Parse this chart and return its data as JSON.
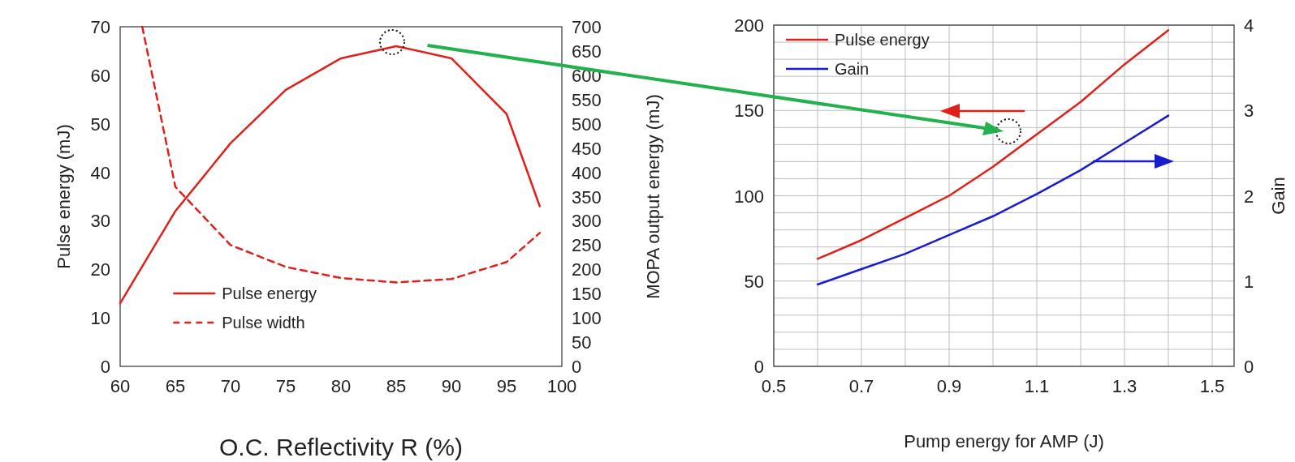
{
  "chart_data": [
    {
      "type": "line",
      "xlabel": "O.C. Reflectivity R (%)",
      "ylabel": "Pulse energy (mJ)",
      "y2label": "MOPA output energy (mJ)",
      "xlim": [
        60,
        100
      ],
      "xticks": [
        60,
        65,
        70,
        75,
        80,
        85,
        90,
        95,
        100
      ],
      "ylim": [
        0,
        70
      ],
      "yticks": [
        0,
        10,
        20,
        30,
        40,
        50,
        60,
        70
      ],
      "y2lim": [
        0,
        700
      ],
      "y2ticks": [
        0,
        50,
        100,
        150,
        200,
        250,
        300,
        350,
        400,
        450,
        500,
        550,
        600,
        650,
        700
      ],
      "grid": false,
      "legend": "bottom",
      "series": [
        {
          "name": "Pulse energy",
          "color": "#e0201b",
          "x": [
            60,
            65,
            70,
            75,
            80,
            85,
            90,
            95,
            98
          ],
          "values": [
            13,
            32,
            46,
            57,
            63.5,
            66,
            63.5,
            52,
            33
          ],
          "line_style": "solid"
        },
        {
          "name": "Pulse width",
          "color": "#e0201b",
          "axis": "y2",
          "x": [
            62,
            65,
            70,
            75,
            80,
            85,
            90,
            95,
            98
          ],
          "values": [
            700,
            370,
            250,
            205,
            182,
            173,
            180,
            215,
            275
          ],
          "line_style": "dashed"
        }
      ]
    },
    {
      "type": "line",
      "xlabel": "Pump energy for AMP (J)",
      "y2label": "Gain",
      "xlim": [
        0.5,
        1.55
      ],
      "xticks": [
        0.5,
        {
          "value": 0.6,
          "label": null
        },
        0.7,
        {
          "value": 0.8,
          "label": null
        },
        0.9,
        {
          "value": 1.0,
          "label": null
        },
        1.1,
        {
          "value": 1.2,
          "label": null
        },
        1.3,
        {
          "value": 1.4,
          "label": null
        },
        1.5
      ],
      "ylim": [
        0,
        200
      ],
      "yticks": [
        0,
        {
          "value": 10,
          "label": null
        },
        {
          "value": 20,
          "label": null
        },
        {
          "value": 30,
          "label": null
        },
        {
          "value": 40,
          "label": null
        },
        50,
        {
          "value": 60,
          "label": null
        },
        {
          "value": 70,
          "label": null
        },
        {
          "value": 80,
          "label": null
        },
        {
          "value": 90,
          "label": null
        },
        100,
        {
          "value": 110,
          "label": null
        },
        {
          "value": 120,
          "label": null
        },
        {
          "value": 130,
          "label": null
        },
        {
          "value": 140,
          "label": null
        },
        150,
        {
          "value": 160,
          "label": null
        },
        {
          "value": 170,
          "label": null
        },
        {
          "value": 180,
          "label": null
        },
        {
          "value": 190,
          "label": null
        },
        200
      ],
      "y2lim": [
        0,
        4
      ],
      "y2ticks": [
        0,
        1,
        2,
        3,
        4
      ],
      "grid": true,
      "legend": "top left",
      "series": [
        {
          "name": "Pulse energy",
          "color": "#e0201b",
          "x": [
            0.6,
            0.7,
            0.8,
            0.9,
            1.0,
            1.1,
            1.2,
            1.3,
            1.4
          ],
          "values": [
            63,
            74,
            87,
            100,
            117,
            136,
            155,
            177,
            197
          ]
        },
        {
          "name": "Gain",
          "color": "#1a1ad0",
          "axis": "y2",
          "x": [
            0.6,
            0.7,
            0.8,
            0.9,
            1.0,
            1.1,
            1.2,
            1.3,
            1.4
          ],
          "values": [
            0.96,
            1.14,
            1.32,
            1.54,
            1.76,
            2.02,
            2.3,
            2.62,
            2.94
          ]
        }
      ]
    }
  ]
}
